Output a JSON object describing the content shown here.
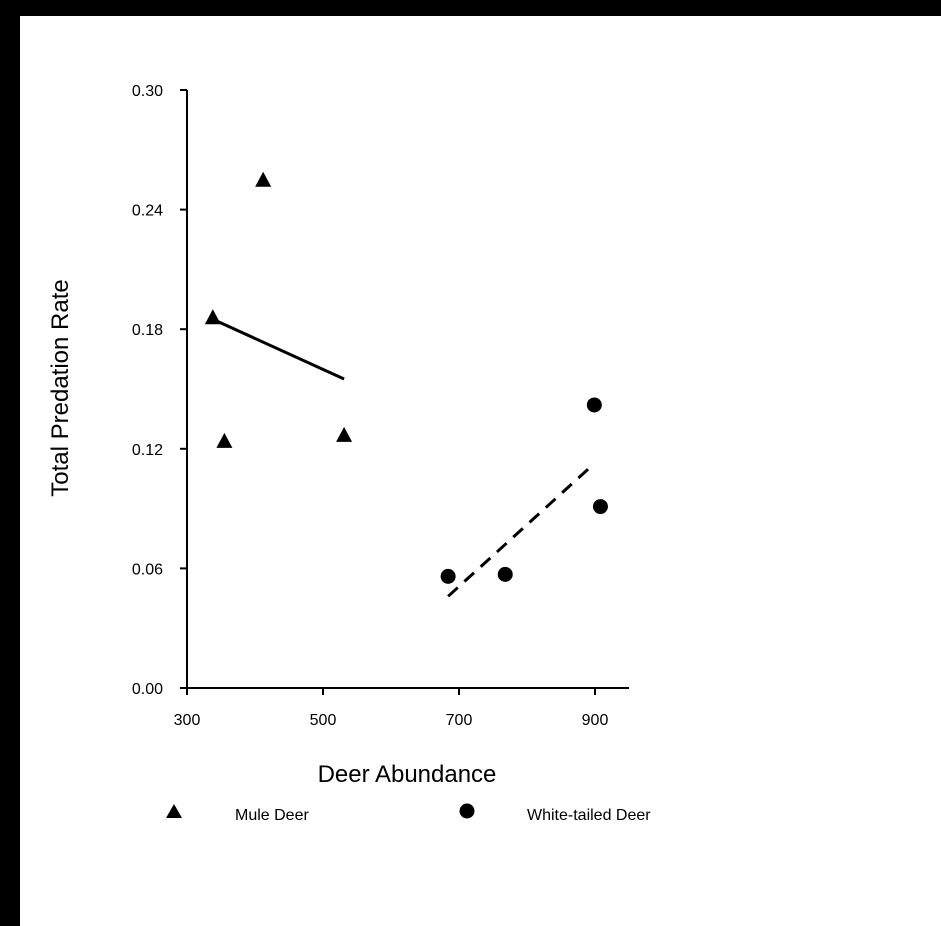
{
  "chart_data": {
    "type": "scatter",
    "title": "",
    "xlabel": "Deer Abundance",
    "ylabel": "Total Predation Rate",
    "xlim": [
      300,
      950
    ],
    "ylim": [
      0,
      0.3
    ],
    "xticks": [
      "300",
      "500",
      "700",
      "900"
    ],
    "xtick_values": [
      300,
      500,
      700,
      900
    ],
    "yticks": [
      "0.00",
      "0.06",
      "0.12",
      "0.18",
      "0.24",
      "0.30"
    ],
    "ytick_values": [
      0,
      0.06,
      0.12,
      0.18,
      0.24,
      0.3
    ],
    "grid": false,
    "legend_position": "bottom",
    "series": [
      {
        "name": "Mule Deer",
        "marker": "triangle",
        "points": [
          {
            "x": 412,
            "y": 0.255
          },
          {
            "x": 338,
            "y": 0.186
          },
          {
            "x": 355,
            "y": 0.124
          },
          {
            "x": 531,
            "y": 0.127
          }
        ],
        "trend": {
          "style": "solid",
          "x": [
            338,
            531
          ],
          "y": [
            0.185,
            0.155
          ]
        }
      },
      {
        "name": "White-tailed Deer",
        "marker": "circle",
        "points": [
          {
            "x": 899,
            "y": 0.142
          },
          {
            "x": 908,
            "y": 0.091
          },
          {
            "x": 684,
            "y": 0.056
          },
          {
            "x": 768,
            "y": 0.057
          }
        ],
        "trend": {
          "style": "dashed",
          "x": [
            684,
            897
          ],
          "y": [
            0.046,
            0.112
          ]
        }
      }
    ]
  }
}
